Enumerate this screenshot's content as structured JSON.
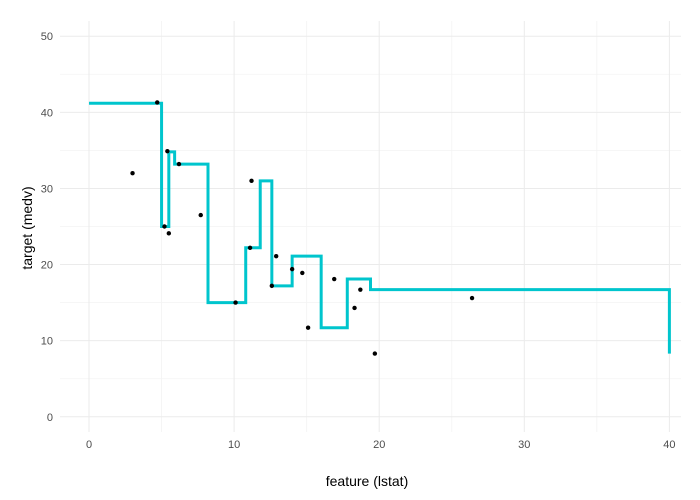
{
  "chart_data": {
    "type": "line",
    "title": "",
    "xlabel": "feature (lstat)",
    "ylabel": "target (medv)",
    "xlim": [
      -2,
      40.8
    ],
    "ylim": [
      -2,
      52
    ],
    "x_ticks": [
      0,
      10,
      20,
      30,
      40
    ],
    "y_ticks": [
      0,
      10,
      20,
      30,
      40,
      50
    ],
    "x_tick_labels": [
      "0",
      "10",
      "20",
      "30",
      "40"
    ],
    "y_tick_labels": [
      "0",
      "10",
      "20",
      "30",
      "40",
      "50"
    ],
    "grid": true,
    "legend": "none",
    "colors": {
      "step_line": "#00c5cd",
      "points": "#000000"
    },
    "series": [
      {
        "type": "step",
        "x": [
          0,
          4.9,
          5.0,
          5.5,
          5.9,
          8.2,
          10.8,
          11.8,
          12.6,
          14.0,
          16.0,
          17.8,
          19.4,
          40.0
        ],
        "y": [
          41.2,
          41.2,
          25.0,
          34.8,
          33.2,
          15.0,
          22.2,
          31.0,
          17.2,
          21.1,
          11.7,
          18.1,
          16.7,
          8.3
        ]
      },
      {
        "type": "scatter",
        "x": [
          3.0,
          4.7,
          5.2,
          5.4,
          5.5,
          6.2,
          7.7,
          10.1,
          11.1,
          11.2,
          12.6,
          12.9,
          14.0,
          14.7,
          15.1,
          16.9,
          18.3,
          18.7,
          19.7,
          26.4
        ],
        "y": [
          32.0,
          41.3,
          25.0,
          34.9,
          24.1,
          33.2,
          26.5,
          15.0,
          22.2,
          31.0,
          17.2,
          21.1,
          19.4,
          18.9,
          11.7,
          18.1,
          14.3,
          16.7,
          8.3,
          15.6
        ]
      }
    ]
  }
}
